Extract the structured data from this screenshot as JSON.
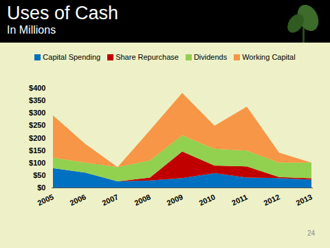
{
  "chart_data": {
    "type": "area",
    "title": "Uses of Cash",
    "subtitle": "In Millions",
    "stacked": true,
    "grid": false,
    "legend": "top",
    "categories": [
      "2005",
      "2006",
      "2007",
      "2008",
      "2009",
      "2010",
      "2011",
      "2012",
      "2013"
    ],
    "series": [
      {
        "name": "Capital Spending",
        "color": "#0070c0",
        "values": [
          78,
          60,
          25,
          28,
          38,
          58,
          40,
          38,
          32
        ]
      },
      {
        "name": "Share Repurchase",
        "color": "#c00000",
        "values": [
          0,
          0,
          0,
          12,
          107,
          30,
          45,
          4,
          5
        ]
      },
      {
        "name": "Dividends",
        "color": "#92d050",
        "values": [
          42,
          40,
          57,
          68,
          65,
          67,
          63,
          58,
          63
        ]
      },
      {
        "name": "Working Capital",
        "color": "#f79646",
        "values": [
          170,
          75,
          0,
          122,
          170,
          93,
          177,
          40,
          0
        ]
      }
    ],
    "ylim": [
      0,
      400
    ],
    "yticks": [
      {
        "value": 0,
        "label": "$0"
      },
      {
        "value": 50,
        "label": "$50"
      },
      {
        "value": 100,
        "label": "$100"
      },
      {
        "value": 150,
        "label": "$150"
      },
      {
        "value": 200,
        "label": "$200"
      },
      {
        "value": 250,
        "label": "$250"
      },
      {
        "value": 300,
        "label": "$300"
      },
      {
        "value": 350,
        "label": "$350"
      },
      {
        "value": 400,
        "label": "$400"
      }
    ],
    "annotations": [
      "24"
    ]
  }
}
